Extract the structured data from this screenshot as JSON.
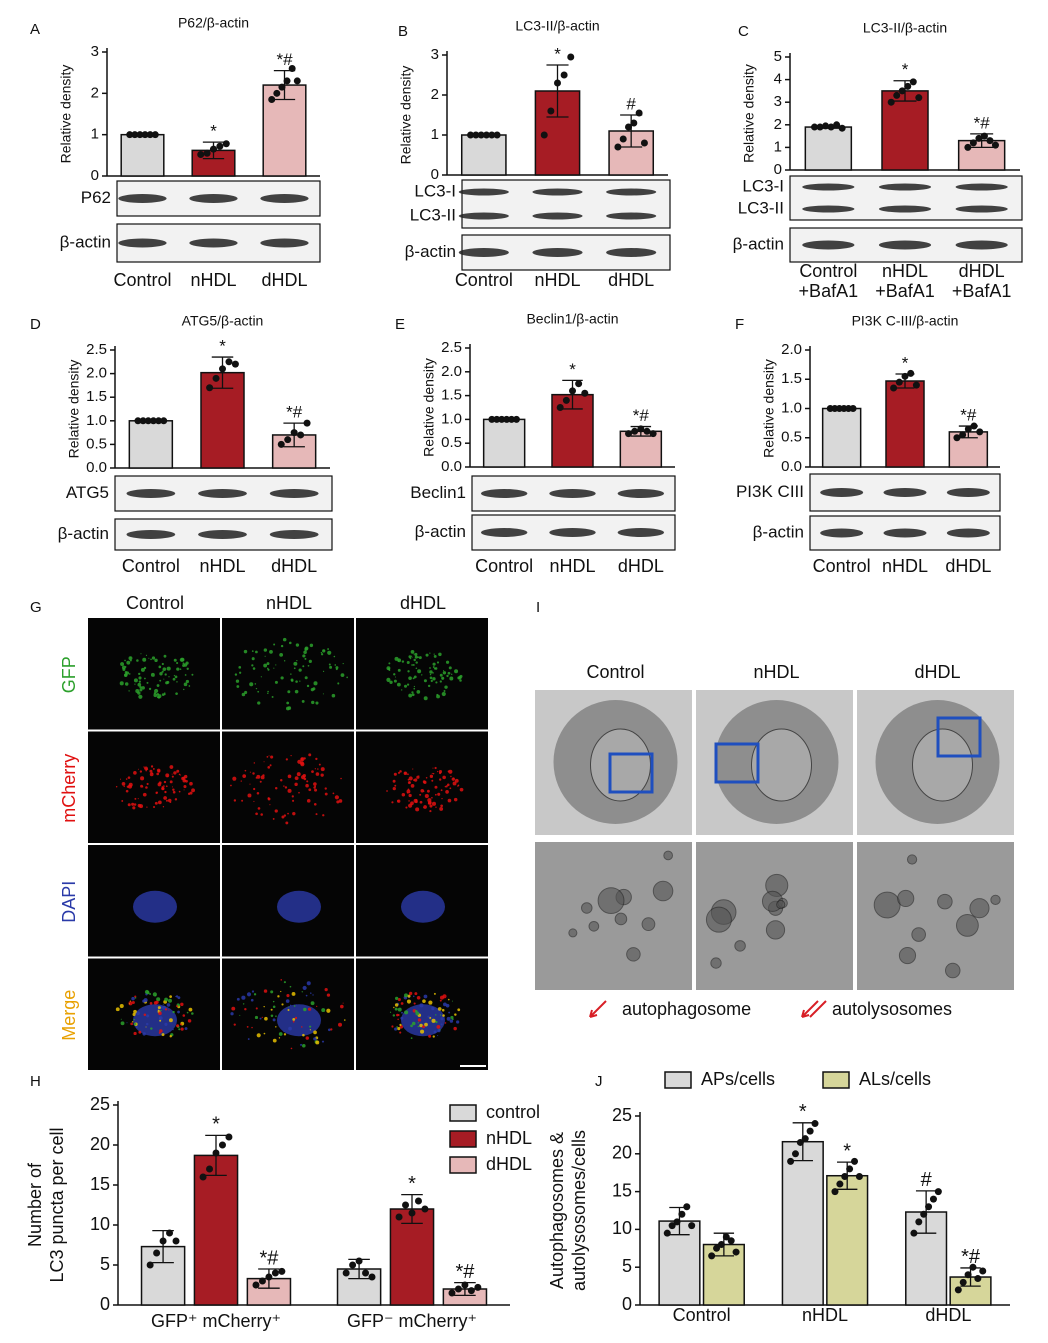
{
  "chart_data": [
    {
      "type": "bar",
      "label": "A",
      "title": "P62/β-actin",
      "ylabel": [
        "Relative density"
      ],
      "categories": [
        "Control",
        "nHDL",
        "dHDL"
      ],
      "values": [
        1,
        0.62,
        2.2
      ],
      "errors": [
        0,
        0.2,
        0.35
      ],
      "colors": [
        "#d9d9d9",
        "#a61c24",
        "#e6b8b8"
      ],
      "points": [
        [
          1,
          1,
          1,
          1,
          1,
          1
        ],
        [
          0.52,
          0.55,
          0.65,
          0.72,
          0.78
        ],
        [
          1.85,
          2.0,
          2.15,
          2.3,
          2.6,
          2.3
        ]
      ],
      "annotations": [
        null,
        "*",
        "*#"
      ],
      "ylim": [
        0,
        3
      ],
      "yticks": [
        0,
        1,
        2,
        3
      ],
      "blots": [
        {
          "labels": [
            "P62"
          ]
        },
        {
          "labels": [
            "β-actin"
          ]
        }
      ]
    },
    {
      "type": "bar",
      "label": "B",
      "title": "LC3-II/β-actin",
      "ylabel": [
        "Relative density"
      ],
      "categories": [
        "Control",
        "nHDL",
        "dHDL"
      ],
      "values": [
        1,
        2.1,
        1.1
      ],
      "errors": [
        0,
        0.65,
        0.4
      ],
      "colors": [
        "#d9d9d9",
        "#a61c24",
        "#e6b8b8"
      ],
      "points": [
        [
          1,
          1,
          1,
          1,
          1,
          1
        ],
        [
          1.0,
          1.6,
          2.3,
          2.5,
          2.95
        ],
        [
          0.7,
          0.9,
          1.2,
          1.3,
          1.55,
          0.8
        ]
      ],
      "annotations": [
        null,
        "*",
        "#"
      ],
      "ylim": [
        0,
        3
      ],
      "yticks": [
        0,
        1,
        2,
        3
      ],
      "blots": [
        {
          "labels": [
            "LC3-I",
            "LC3-II"
          ]
        },
        {
          "labels": [
            "β-actin"
          ]
        }
      ]
    },
    {
      "type": "bar",
      "label": "C",
      "title": "LC3-II/β-actin",
      "ylabel": [
        "Relative density"
      ],
      "categories": [
        "Control +BafA1",
        "nHDL +BafA1",
        "dHDL +BafA1"
      ],
      "values": [
        1.9,
        3.5,
        1.3
      ],
      "errors": [
        0.05,
        0.45,
        0.3
      ],
      "colors": [
        "#d9d9d9",
        "#a61c24",
        "#e6b8b8"
      ],
      "points": [
        [
          1.9,
          1.9,
          1.95,
          1.9,
          2.0,
          1.85
        ],
        [
          3.0,
          3.3,
          3.5,
          3.7,
          3.9,
          3.2
        ],
        [
          1.0,
          1.2,
          1.4,
          1.5,
          1.3,
          1.1
        ]
      ],
      "annotations": [
        null,
        "*",
        "*#"
      ],
      "ylim": [
        0,
        5
      ],
      "yticks": [
        0,
        1,
        2,
        3,
        4,
        5
      ],
      "blots": [
        {
          "labels": [
            "LC3-I",
            "LC3-II"
          ]
        },
        {
          "labels": [
            "β-actin"
          ]
        }
      ]
    },
    {
      "type": "bar",
      "label": "D",
      "title": "ATG5/β-actin",
      "ylabel": [
        "Relative density"
      ],
      "categories": [
        "Control",
        "nHDL",
        "dHDL"
      ],
      "values": [
        1,
        2.02,
        0.7
      ],
      "errors": [
        0,
        0.33,
        0.25
      ],
      "colors": [
        "#d9d9d9",
        "#a61c24",
        "#e6b8b8"
      ],
      "points": [
        [
          1,
          1,
          1,
          1,
          1,
          1
        ],
        [
          1.7,
          1.9,
          2.1,
          2.25,
          2.2
        ],
        [
          0.5,
          0.6,
          0.75,
          0.7,
          0.95
        ]
      ],
      "annotations": [
        null,
        "*",
        "*#"
      ],
      "ylim": [
        0,
        2.5
      ],
      "yticks": [
        {
          "value": 0,
          "label": "0.0"
        },
        0.5,
        {
          "value": 1,
          "label": "1.0"
        },
        1.5,
        {
          "value": 2,
          "label": "2.0"
        },
        2.5
      ],
      "blots": [
        {
          "labels": [
            "ATG5"
          ]
        },
        {
          "labels": [
            "β-actin"
          ]
        }
      ]
    },
    {
      "type": "bar",
      "label": "E",
      "title": "Beclin1/β-actin",
      "ylabel": [
        "Relative density"
      ],
      "categories": [
        "Control",
        "nHDL",
        "dHDL"
      ],
      "values": [
        1,
        1.52,
        0.75
      ],
      "errors": [
        0,
        0.3,
        0.1
      ],
      "colors": [
        "#d9d9d9",
        "#a61c24",
        "#e6b8b8"
      ],
      "points": [
        [
          1,
          1,
          1,
          1,
          1,
          1
        ],
        [
          1.25,
          1.4,
          1.6,
          1.75,
          1.55
        ],
        [
          0.7,
          0.75,
          0.8,
          0.75,
          0.7
        ]
      ],
      "annotations": [
        null,
        "*",
        "*#"
      ],
      "ylim": [
        0,
        2.5
      ],
      "yticks": [
        {
          "value": 0,
          "label": "0.0"
        },
        0.5,
        {
          "value": 1,
          "label": "1.0"
        },
        1.5,
        {
          "value": 2,
          "label": "2.0"
        },
        2.5
      ],
      "blots": [
        {
          "labels": [
            "Beclin1"
          ]
        },
        {
          "labels": [
            "β-actin"
          ]
        }
      ]
    },
    {
      "type": "bar",
      "label": "F",
      "title": "PI3K C-III/β-actin",
      "ylabel": [
        "Relative density"
      ],
      "categories": [
        "Control",
        "nHDL",
        "dHDL"
      ],
      "values": [
        1,
        1.47,
        0.6
      ],
      "errors": [
        0,
        0.12,
        0.1
      ],
      "colors": [
        "#d9d9d9",
        "#a61c24",
        "#e6b8b8"
      ],
      "points": [
        [
          1,
          1,
          1,
          1,
          1,
          1
        ],
        [
          1.35,
          1.45,
          1.55,
          1.6,
          1.4
        ],
        [
          0.5,
          0.55,
          0.65,
          0.7,
          0.6
        ]
      ],
      "annotations": [
        null,
        "*",
        "*#"
      ],
      "ylim": [
        0,
        2
      ],
      "yticks": [
        {
          "value": 0,
          "label": "0.0"
        },
        0.5,
        {
          "value": 1,
          "label": "1.0"
        },
        1.5,
        {
          "value": 2,
          "label": "2.0"
        }
      ],
      "blots": [
        {
          "labels": [
            "PI3K CIII"
          ]
        },
        {
          "labels": [
            "β-actin"
          ]
        }
      ]
    },
    {
      "type": "bar",
      "label": "H",
      "ylabel": [
        "Number of",
        "LC3 puncta per cell"
      ],
      "categories": [
        "GFP⁺ mCherry⁺",
        "GFP⁻ mCherry⁺"
      ],
      "series": [
        {
          "name": "control",
          "color": "#d9d9d9",
          "values": [
            7.3,
            4.5
          ],
          "errors": [
            2,
            1.2
          ],
          "points": [
            [
              5,
              6.5,
              8,
              9,
              8
            ],
            [
              4,
              5,
              5.5,
              4,
              3.5
            ]
          ],
          "annotations": [
            null,
            null
          ]
        },
        {
          "name": "nHDL",
          "color": "#a61c24",
          "values": [
            18.7,
            12
          ],
          "errors": [
            2.5,
            1.8
          ],
          "points": [
            [
              16,
              17,
              19,
              20,
              21
            ],
            [
              11,
              12.5,
              11.5,
              13,
              12
            ]
          ],
          "annotations": [
            "*",
            "*"
          ]
        },
        {
          "name": "dHDL",
          "color": "#e6b8b8",
          "values": [
            3.3,
            2
          ],
          "errors": [
            1.2,
            0.8
          ],
          "points": [
            [
              2.5,
              3,
              3.5,
              4,
              4.2
            ],
            [
              1.5,
              2,
              2.5,
              1.8,
              2.2
            ]
          ],
          "annotations": [
            "*#",
            "*#"
          ]
        }
      ],
      "ylim": [
        0,
        25
      ],
      "yticks": [
        0,
        5,
        10,
        15,
        20,
        25
      ],
      "legend": "right"
    },
    {
      "type": "bar",
      "label": "J",
      "ylabel": [
        "Autophagosomes &",
        "autolysosomes/cells"
      ],
      "categories": [
        "Control",
        "nHDL",
        "dHDL"
      ],
      "series": [
        {
          "name": "APs/cells",
          "color": "#d9d9d9",
          "values": [
            11.1,
            21.6,
            12.3
          ],
          "errors": [
            1.8,
            2.5,
            2.8
          ],
          "points": [
            [
              9.5,
              10.5,
              11,
              12,
              13,
              10.5
            ],
            [
              19,
              20,
              21.5,
              22,
              23,
              24
            ],
            [
              9.5,
              11,
              12,
              13,
              14,
              15
            ]
          ],
          "annotations": [
            null,
            "*",
            "#"
          ]
        },
        {
          "name": "ALs/cells",
          "color": "#d6d69a",
          "values": [
            8,
            17.1,
            3.7
          ],
          "errors": [
            1.5,
            1.8,
            1.2
          ],
          "points": [
            [
              6.5,
              7.5,
              8,
              9,
              8.5,
              7
            ],
            [
              15,
              16,
              17,
              18,
              19,
              17
            ],
            [
              2,
              3,
              4,
              5,
              3.5,
              4.5
            ]
          ],
          "annotations": [
            null,
            "*",
            "*#"
          ]
        }
      ],
      "ylim": [
        0,
        25
      ],
      "yticks": [
        0,
        5,
        10,
        15,
        20,
        25
      ],
      "legend": "top"
    }
  ],
  "microscopy": {
    "label": "G",
    "columns": [
      "Control",
      "nHDL",
      "dHDL"
    ],
    "rows": [
      {
        "name": "GFP",
        "color": "#2ca02c"
      },
      {
        "name": "mCherry",
        "color": "#e01010"
      },
      {
        "name": "DAPI",
        "color": "#2a3aa8"
      },
      {
        "name": "Merge",
        "color": "#e8a000"
      }
    ]
  },
  "tem": {
    "label": "I",
    "columns": [
      "Control",
      "nHDL",
      "dHDL"
    ],
    "legend": [
      "autophagosome",
      "autolysosomes"
    ]
  }
}
